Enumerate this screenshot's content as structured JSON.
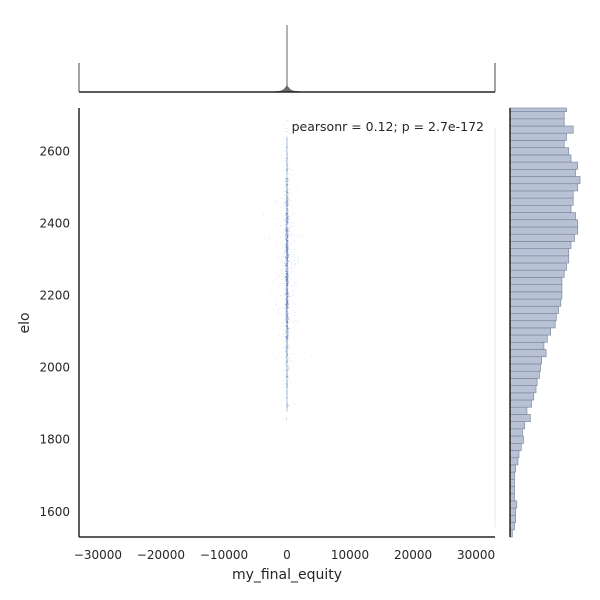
{
  "chart_data": {
    "type": "scatter",
    "kind": "jointplot",
    "xlabel": "my_final_equity",
    "ylabel": "elo",
    "xlim": [
      -33000,
      33000
    ],
    "ylim": [
      1530,
      2720
    ],
    "xticks": [
      -30000,
      -20000,
      -10000,
      0,
      10000,
      20000,
      30000
    ],
    "xtick_labels": [
      "−30000",
      "−20000",
      "−10000",
      "0",
      "10000",
      "20000",
      "30000"
    ],
    "yticks": [
      1600,
      1800,
      2000,
      2200,
      2400,
      2600
    ],
    "ytick_labels": [
      "1600",
      "1800",
      "2000",
      "2200",
      "2400",
      "2600"
    ],
    "annotation": "pearsonr = 0.12; p = 2.7e-172",
    "grid": false,
    "colors": {
      "points": "#4c72b0",
      "hist_fill": "#b8c2d4",
      "hist_edge": "#7f8aa0",
      "marginal_x": "#8a8a8a",
      "axes": "#262626"
    },
    "marginal_x": {
      "note_values": "relative counts vs x (equity)",
      "x": [
        -2000,
        -1000,
        -500,
        -200,
        0,
        200,
        500,
        1000,
        2000
      ],
      "counts": [
        0.01,
        0.03,
        0.08,
        0.15,
        1.0,
        0.15,
        0.08,
        0.03,
        0.01
      ]
    },
    "marginal_y": {
      "bin_edges_start": 1530,
      "bin_width": 20,
      "counts": [
        2,
        4,
        5,
        5,
        6,
        4,
        4,
        4,
        4,
        5,
        7,
        8,
        10,
        12,
        11,
        13,
        18,
        15,
        19,
        21,
        23,
        24,
        26,
        27,
        28,
        32,
        30,
        33,
        36,
        40,
        41,
        43,
        45,
        46,
        46,
        46,
        48,
        50,
        52,
        52,
        54,
        57,
        60,
        60,
        58,
        54,
        56,
        56,
        60,
        62,
        58,
        60,
        54,
        52,
        48,
        50,
        56,
        48,
        48,
        50,
        36,
        36,
        34,
        30,
        28,
        20,
        18
      ]
    }
  }
}
